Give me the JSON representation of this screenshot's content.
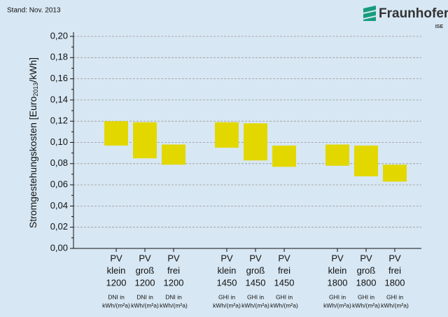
{
  "chart_data": {
    "type": "range_bar",
    "note": "Stand: Nov. 2013",
    "logo": "Fraunhofer",
    "logo_sub": "ISE",
    "ylabel": [
      "Stromgestehungskosten [Euro",
      "2013",
      "/kWh]"
    ],
    "categories": [
      [
        "PV",
        "klein",
        "1200"
      ],
      [
        "PV",
        "groß",
        "1200"
      ],
      [
        "PV",
        "frei",
        "1200"
      ],
      [
        "PV",
        "klein",
        "1450"
      ],
      [
        "PV",
        "groß",
        "1450"
      ],
      [
        "PV",
        "frei",
        "1450"
      ],
      [
        "PV",
        "klein",
        "1800"
      ],
      [
        "PV",
        "groß",
        "1800"
      ],
      [
        "PV",
        "frei",
        "1800"
      ]
    ],
    "sublabels": [
      [
        "DNI in",
        "kWh/(m²a)"
      ],
      [
        "DNI in",
        "kWh/(m²a)"
      ],
      [
        "DNI in",
        "kWh/(m²a)"
      ],
      [
        "GHI in",
        "kWh/(m²a)"
      ],
      [
        "GHI in",
        "kWh/(m²a)"
      ],
      [
        "GHI in",
        "kWh/(m²a)"
      ],
      [
        "GHI in",
        "kWh/(m²a)"
      ],
      [
        "GHI in",
        "kWh/(m²a)"
      ],
      [
        "GHI in",
        "kWh/(m²a)"
      ]
    ],
    "low": [
      0.097,
      0.085,
      0.079,
      0.095,
      0.083,
      0.077,
      0.078,
      0.068,
      0.063
    ],
    "high": [
      0.12,
      0.119,
      0.098,
      0.119,
      0.118,
      0.097,
      0.098,
      0.097,
      0.079
    ],
    "color": "#e2d800",
    "ylim": [
      0,
      0.2
    ],
    "yticks": [
      {
        "value": 0,
        "label": "0,00"
      },
      {
        "value": 0.02,
        "label": "0,02"
      },
      {
        "value": 0.04,
        "label": "0,04"
      },
      {
        "value": 0.06,
        "label": "0,06"
      },
      {
        "value": 0.08,
        "label": "0,08"
      },
      {
        "value": 0.1,
        "label": "0,10"
      },
      {
        "value": 0.12,
        "label": "0,12"
      },
      {
        "value": 0.14,
        "label": "0,14"
      },
      {
        "value": 0.16,
        "label": "0,16"
      },
      {
        "value": 0.18,
        "label": "0,18"
      },
      {
        "value": 0.2,
        "label": "0,20"
      }
    ],
    "grid": true
  }
}
